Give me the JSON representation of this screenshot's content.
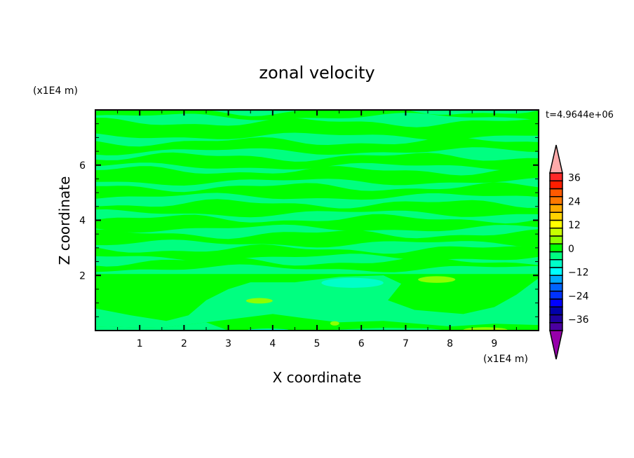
{
  "chart_data": {
    "type": "heatmap",
    "title": "zonal velocity",
    "xlabel": "X coordinate",
    "ylabel": "Z coordinate",
    "x_unit": "(x1E4 m)",
    "y_unit": "(x1E4 m)",
    "time_label": "t=4.9644e+06",
    "xlim": [
      0,
      10
    ],
    "ylim": [
      0,
      8
    ],
    "x_ticks": [
      1,
      2,
      3,
      4,
      5,
      6,
      7,
      8,
      9
    ],
    "y_ticks": [
      2,
      4,
      6
    ],
    "colorbar": {
      "levels": [
        -40,
        -36,
        -32,
        -28,
        -24,
        -20,
        -16,
        -12,
        -8,
        -4,
        0,
        4,
        8,
        12,
        16,
        20,
        24,
        28,
        32,
        36,
        40
      ],
      "tick_labels": [
        "36",
        "24",
        "12",
        "0",
        "-12",
        "-24",
        "-36"
      ],
      "tick_values": [
        36,
        24,
        12,
        0,
        -12,
        -24,
        -36
      ],
      "colors_low_to_high": [
        "#4b00a0",
        "#1e00a0",
        "#0000aa",
        "#0000ff",
        "#0032ff",
        "#0064ff",
        "#00aaff",
        "#00ffff",
        "#00ffc8",
        "#00ff80",
        "#00ff00",
        "#8cff00",
        "#c8ff00",
        "#ffff00",
        "#ffd200",
        "#ffaa00",
        "#ff7800",
        "#ff5a00",
        "#ff1e00",
        "#ff2828"
      ],
      "under_color": "#9600aa",
      "over_color": "#ffaaaa"
    },
    "field_summary": {
      "dominant_range": [
        -4,
        4
      ],
      "max_region_value_range": [
        4,
        8
      ],
      "min_region_value_range": [
        -8,
        -4
      ]
    }
  }
}
